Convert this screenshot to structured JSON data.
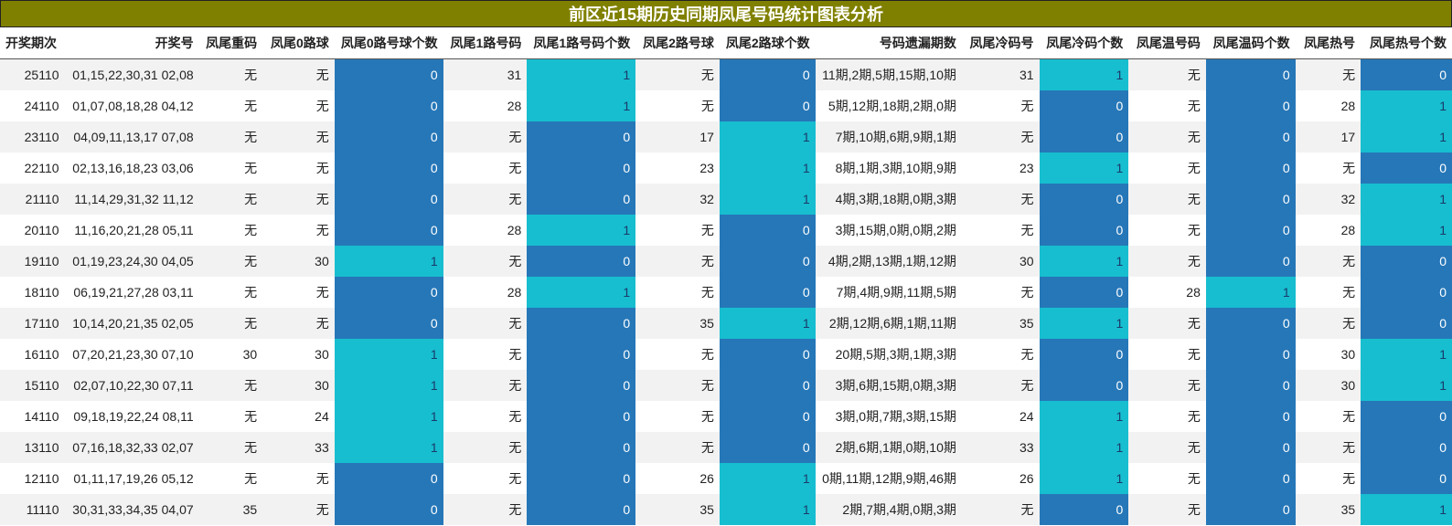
{
  "title": "前区近15期历史同期凤尾号码统计图表分析",
  "headers": [
    "开奖期次",
    "开奖号",
    "凤尾重码",
    "凤尾0路球",
    "凤尾0路号球个数",
    "凤尾1路号码",
    "凤尾1路号码个数",
    "凤尾2路号球",
    "凤尾2路球个数",
    "号码遗漏期数",
    "凤尾冷码号",
    "凤尾冷码个数",
    "凤尾温号码",
    "凤尾温码个数",
    "凤尾热号",
    "凤尾热号个数"
  ],
  "count_columns": [
    4,
    6,
    8,
    11,
    13,
    15
  ],
  "colors": {
    "count_zero": "#2677b8",
    "count_one": "#17becf",
    "title_bg": "#808000"
  },
  "rows": [
    [
      "25110",
      "01,15,22,30,31 02,08",
      "无",
      "无",
      "0",
      "31",
      "1",
      "无",
      "0",
      "11期,2期,5期,15期,10期",
      "31",
      "1",
      "无",
      "0",
      "无",
      "0"
    ],
    [
      "24110",
      "01,07,08,18,28 04,12",
      "无",
      "无",
      "0",
      "28",
      "1",
      "无",
      "0",
      "5期,12期,18期,2期,0期",
      "无",
      "0",
      "无",
      "0",
      "28",
      "1"
    ],
    [
      "23110",
      "04,09,11,13,17 07,08",
      "无",
      "无",
      "0",
      "无",
      "0",
      "17",
      "1",
      "7期,10期,6期,9期,1期",
      "无",
      "0",
      "无",
      "0",
      "17",
      "1"
    ],
    [
      "22110",
      "02,13,16,18,23 03,06",
      "无",
      "无",
      "0",
      "无",
      "0",
      "23",
      "1",
      "8期,1期,3期,10期,9期",
      "23",
      "1",
      "无",
      "0",
      "无",
      "0"
    ],
    [
      "21110",
      "11,14,29,31,32 11,12",
      "无",
      "无",
      "0",
      "无",
      "0",
      "32",
      "1",
      "4期,3期,18期,0期,3期",
      "无",
      "0",
      "无",
      "0",
      "32",
      "1"
    ],
    [
      "20110",
      "11,16,20,21,28 05,11",
      "无",
      "无",
      "0",
      "28",
      "1",
      "无",
      "0",
      "3期,15期,0期,0期,2期",
      "无",
      "0",
      "无",
      "0",
      "28",
      "1"
    ],
    [
      "19110",
      "01,19,23,24,30 04,05",
      "无",
      "30",
      "1",
      "无",
      "0",
      "无",
      "0",
      "4期,2期,13期,1期,12期",
      "30",
      "1",
      "无",
      "0",
      "无",
      "0"
    ],
    [
      "18110",
      "06,19,21,27,28 03,11",
      "无",
      "无",
      "0",
      "28",
      "1",
      "无",
      "0",
      "7期,4期,9期,11期,5期",
      "无",
      "0",
      "28",
      "1",
      "无",
      "0"
    ],
    [
      "17110",
      "10,14,20,21,35 02,05",
      "无",
      "无",
      "0",
      "无",
      "0",
      "35",
      "1",
      "2期,12期,6期,1期,11期",
      "35",
      "1",
      "无",
      "0",
      "无",
      "0"
    ],
    [
      "16110",
      "07,20,21,23,30 07,10",
      "30",
      "30",
      "1",
      "无",
      "0",
      "无",
      "0",
      "20期,5期,3期,1期,3期",
      "无",
      "0",
      "无",
      "0",
      "30",
      "1"
    ],
    [
      "15110",
      "02,07,10,22,30 07,11",
      "无",
      "30",
      "1",
      "无",
      "0",
      "无",
      "0",
      "3期,6期,15期,0期,3期",
      "无",
      "0",
      "无",
      "0",
      "30",
      "1"
    ],
    [
      "14110",
      "09,18,19,22,24 08,11",
      "无",
      "24",
      "1",
      "无",
      "0",
      "无",
      "0",
      "3期,0期,7期,3期,15期",
      "24",
      "1",
      "无",
      "0",
      "无",
      "0"
    ],
    [
      "13110",
      "07,16,18,32,33 02,07",
      "无",
      "33",
      "1",
      "无",
      "0",
      "无",
      "0",
      "2期,6期,1期,0期,10期",
      "33",
      "1",
      "无",
      "0",
      "无",
      "0"
    ],
    [
      "12110",
      "01,11,17,19,26 05,12",
      "无",
      "无",
      "0",
      "无",
      "0",
      "26",
      "1",
      "0期,11期,12期,9期,46期",
      "26",
      "1",
      "无",
      "0",
      "无",
      "0"
    ],
    [
      "11110",
      "30,31,33,34,35 04,07",
      "35",
      "无",
      "0",
      "无",
      "0",
      "35",
      "1",
      "2期,7期,4期,0期,3期",
      "无",
      "0",
      "无",
      "0",
      "35",
      "1"
    ]
  ]
}
